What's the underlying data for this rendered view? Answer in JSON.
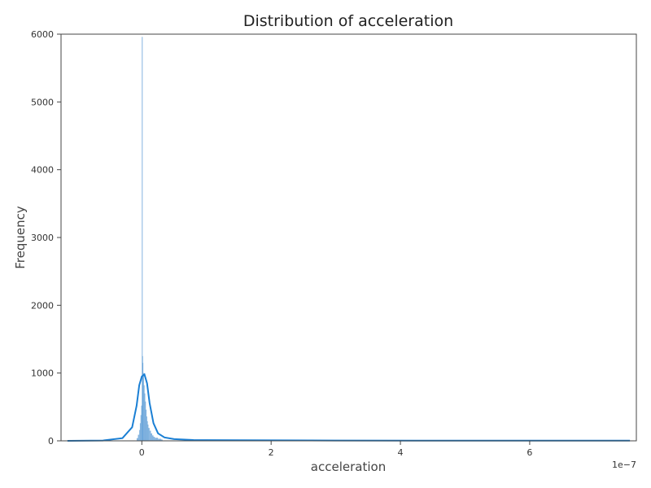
{
  "chart_data": {
    "type": "bar",
    "title": "Distribution of acceleration",
    "xlabel": "acceleration",
    "ylabel": "Frequency",
    "x_offset_label": "1e−7",
    "xlim": [
      -1.25,
      7.65
    ],
    "ylim": [
      0,
      6000
    ],
    "x_ticks": [
      0,
      2,
      4,
      6
    ],
    "x_tick_labels": [
      "0",
      "2",
      "4",
      "6"
    ],
    "y_ticks": [
      0,
      1000,
      2000,
      3000,
      4000,
      5000,
      6000
    ],
    "y_tick_labels": [
      "0",
      "1000",
      "2000",
      "3000",
      "4000",
      "5000",
      "6000"
    ],
    "grid": false,
    "bar_color": "#5b9bd5",
    "kde_color": "#1a7fd4",
    "bins": {
      "x": [
        -0.08,
        -0.06,
        -0.04,
        -0.03,
        -0.02,
        -0.01,
        0.0,
        0.005,
        0.01,
        0.02,
        0.03,
        0.04,
        0.05,
        0.06,
        0.07,
        0.08,
        0.09,
        0.1,
        0.12,
        0.14,
        0.16,
        0.18,
        0.2,
        0.25,
        0.3
      ],
      "values": [
        40,
        90,
        160,
        260,
        380,
        520,
        5960,
        1250,
        1150,
        1000,
        820,
        700,
        580,
        460,
        360,
        290,
        240,
        190,
        150,
        110,
        80,
        60,
        45,
        30,
        20
      ]
    },
    "kde": {
      "x": [
        -1.15,
        -0.6,
        -0.3,
        -0.15,
        -0.08,
        -0.04,
        0.0,
        0.04,
        0.08,
        0.12,
        0.18,
        0.25,
        0.35,
        0.5,
        0.8,
        1.5,
        3.0,
        5.0,
        7.55
      ],
      "y": [
        0,
        5,
        40,
        200,
        520,
        820,
        950,
        980,
        850,
        560,
        260,
        110,
        50,
        25,
        12,
        8,
        5,
        3,
        2
      ]
    }
  }
}
